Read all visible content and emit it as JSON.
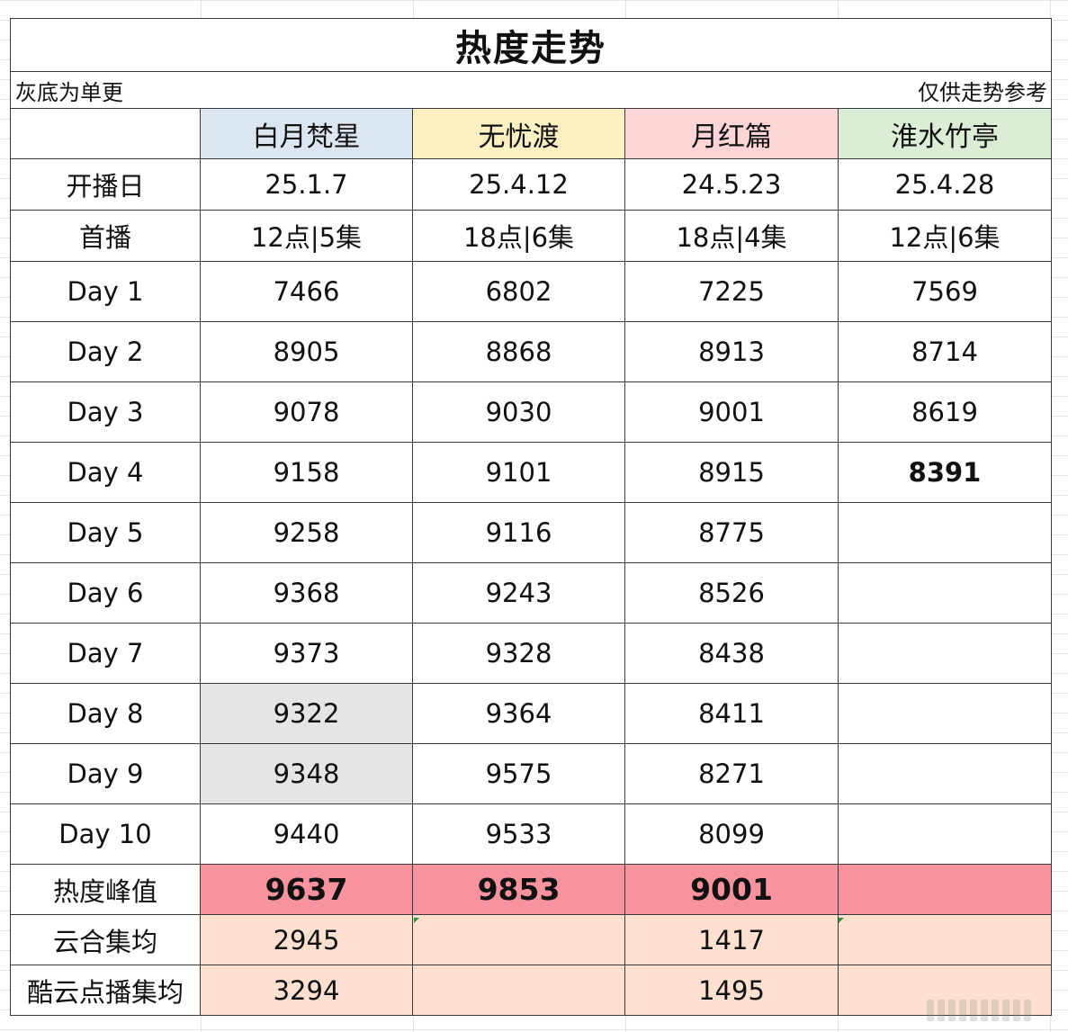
{
  "title": "热度走势",
  "note_left": "灰底为单更",
  "note_right": "仅供走势参考",
  "colors": {
    "header_1": "#dce6f1",
    "header_2": "#fdf0c2",
    "header_3": "#fdd5d7",
    "header_4": "#dbedd5",
    "peak_fill": "#f7939f",
    "avg_fill": "#fde0d0",
    "single_update_fill": "#e5e5e5"
  },
  "shows": [
    "白月梵星",
    "无忧渡",
    "月红篇",
    "淮水竹亭"
  ],
  "info_rows": [
    {
      "label": "开播日",
      "values": [
        "25.1.7",
        "25.4.12",
        "24.5.23",
        "25.4.28"
      ]
    },
    {
      "label": "首播",
      "values": [
        "12点|5集",
        "18点|6集",
        "18点|4集",
        "12点|6集"
      ]
    }
  ],
  "days": [
    {
      "label": "Day 1",
      "values": [
        "7466",
        "6802",
        "7225",
        "7569"
      ]
    },
    {
      "label": "Day 2",
      "values": [
        "8905",
        "8868",
        "8913",
        "8714"
      ]
    },
    {
      "label": "Day 3",
      "values": [
        "9078",
        "9030",
        "9001",
        "8619"
      ]
    },
    {
      "label": "Day 4",
      "values": [
        "9158",
        "9101",
        "8915",
        "8391"
      ]
    },
    {
      "label": "Day 5",
      "values": [
        "9258",
        "9116",
        "8775",
        ""
      ]
    },
    {
      "label": "Day 6",
      "values": [
        "9368",
        "9243",
        "8526",
        ""
      ]
    },
    {
      "label": "Day 7",
      "values": [
        "9373",
        "9328",
        "8438",
        ""
      ]
    },
    {
      "label": "Day 8",
      "values": [
        "9322",
        "9364",
        "8411",
        ""
      ]
    },
    {
      "label": "Day 9",
      "values": [
        "9348",
        "9575",
        "8271",
        ""
      ]
    },
    {
      "label": "Day 10",
      "values": [
        "9440",
        "9533",
        "8099",
        ""
      ]
    }
  ],
  "peak": {
    "label": "热度峰值",
    "values": [
      "9637",
      "9853",
      "9001",
      ""
    ]
  },
  "averages": [
    {
      "label": "云合集均",
      "values": [
        "2945",
        "",
        "1417",
        ""
      ]
    },
    {
      "label": "酷云点播集均",
      "values": [
        "3294",
        "",
        "1495",
        ""
      ]
    }
  ]
}
